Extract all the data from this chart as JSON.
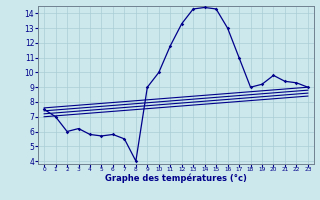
{
  "xlabel": "Graphe des températures (°c)",
  "xlim": [
    -0.5,
    23.5
  ],
  "ylim": [
    3.8,
    14.5
  ],
  "yticks": [
    4,
    5,
    6,
    7,
    8,
    9,
    10,
    11,
    12,
    13,
    14
  ],
  "xticks": [
    0,
    1,
    2,
    3,
    4,
    5,
    6,
    7,
    8,
    9,
    10,
    11,
    12,
    13,
    14,
    15,
    16,
    17,
    18,
    19,
    20,
    21,
    22,
    23
  ],
  "background_color": "#cce8ec",
  "grid_color": "#aacdd4",
  "line_color": "#00008b",
  "hours": [
    0,
    1,
    2,
    3,
    4,
    5,
    6,
    7,
    8,
    9,
    10,
    11,
    12,
    13,
    14,
    15,
    16,
    17,
    18,
    19,
    20,
    21,
    22,
    23
  ],
  "temp_actual": [
    7.5,
    7.0,
    6.0,
    6.2,
    5.8,
    5.7,
    5.8,
    5.5,
    4.0,
    9.0,
    10.0,
    11.8,
    13.3,
    14.3,
    14.4,
    14.3,
    13.0,
    11.0,
    9.0,
    9.2,
    9.8,
    9.4,
    9.3,
    9.0
  ],
  "diag_lines": [
    {
      "x": [
        0,
        23
      ],
      "y": [
        7.6,
        9.0
      ]
    },
    {
      "x": [
        0,
        23
      ],
      "y": [
        7.4,
        8.8
      ]
    },
    {
      "x": [
        0,
        23
      ],
      "y": [
        7.2,
        8.6
      ]
    },
    {
      "x": [
        0,
        23
      ],
      "y": [
        7.0,
        8.4
      ]
    }
  ]
}
